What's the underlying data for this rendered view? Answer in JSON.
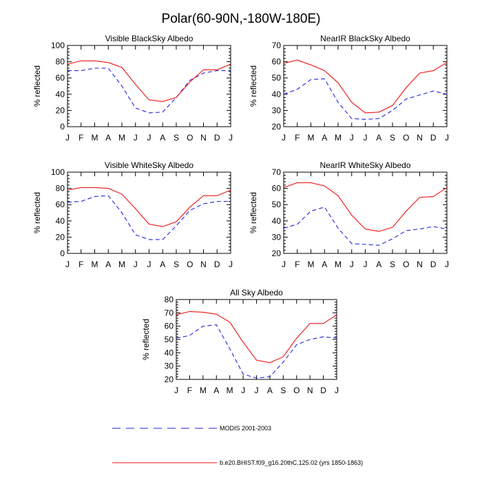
{
  "title": "Polar(60-90N,-180W-180E)",
  "ylabel": "% reflected",
  "months": [
    "J",
    "F",
    "M",
    "A",
    "M",
    "J",
    "J",
    "A",
    "S",
    "O",
    "N",
    "D",
    "J"
  ],
  "legend": [
    {
      "label": "MODIS 2001-2003",
      "color": "#2222dd",
      "style": "dashed"
    },
    {
      "label": "b.e20.BHIST.f09_g16.20thC.125.02 (yrs 1850-1863)",
      "color": "#ee1111",
      "style": "solid"
    }
  ],
  "chart_data": [
    {
      "type": "line",
      "title": "Visible BlackSky Albedo",
      "ylabel": "% reflected",
      "ylim": [
        0,
        100
      ],
      "yticks": [
        0,
        20,
        40,
        60,
        80,
        100
      ],
      "categories": [
        "J",
        "F",
        "M",
        "A",
        "M",
        "J",
        "J",
        "A",
        "S",
        "O",
        "N",
        "D",
        "J"
      ],
      "series": [
        {
          "name": "MODIS 2001-2003",
          "values": [
            69,
            69,
            72,
            72,
            50,
            23,
            17,
            18,
            36,
            57,
            66,
            69,
            69
          ]
        },
        {
          "name": "b.e20.BHIST.f09_g16.20thC.125.02 (yrs 1850-1863)",
          "values": [
            77,
            81,
            81,
            79,
            73,
            52,
            33,
            31,
            36,
            55,
            70,
            70,
            77
          ]
        }
      ]
    },
    {
      "type": "line",
      "title": "NearIR BlackSky Albedo",
      "ylabel": "% reflected",
      "ylim": [
        20,
        70
      ],
      "yticks": [
        20,
        30,
        40,
        50,
        60,
        70
      ],
      "categories": [
        "J",
        "F",
        "M",
        "A",
        "M",
        "J",
        "J",
        "A",
        "S",
        "O",
        "N",
        "D",
        "J"
      ],
      "series": [
        {
          "name": "MODIS 2001-2003",
          "values": [
            40,
            43,
            49,
            49.5,
            35,
            25,
            24.5,
            25,
            30,
            37,
            39.5,
            42,
            40
          ]
        },
        {
          "name": "b.e20.BHIST.f09_g16.20thC.125.02 (yrs 1850-1863)",
          "values": [
            59,
            61,
            58,
            54.5,
            47,
            35,
            28.5,
            29,
            33,
            44,
            53,
            54.5,
            59.5
          ]
        }
      ]
    },
    {
      "type": "line",
      "title": "Visible WhiteSky Albedo",
      "ylabel": "% reflected",
      "ylim": [
        0,
        100
      ],
      "yticks": [
        0,
        20,
        40,
        60,
        80,
        100
      ],
      "categories": [
        "J",
        "F",
        "M",
        "A",
        "M",
        "J",
        "J",
        "A",
        "S",
        "O",
        "N",
        "D",
        "J"
      ],
      "series": [
        {
          "name": "MODIS 2001-2003",
          "values": [
            63,
            64,
            70,
            71,
            50,
            23,
            17,
            17,
            34,
            53,
            61,
            64,
            64
          ]
        },
        {
          "name": "b.e20.BHIST.f09_g16.20thC.125.02 (yrs 1850-1863)",
          "values": [
            78,
            81,
            81,
            80,
            73,
            55,
            36,
            33,
            39,
            57,
            71,
            71,
            78
          ]
        }
      ]
    },
    {
      "type": "line",
      "title": "NearIR WhiteSky Albedo",
      "ylabel": "% reflected",
      "ylim": [
        20,
        70
      ],
      "yticks": [
        20,
        30,
        40,
        50,
        60,
        70
      ],
      "categories": [
        "J",
        "F",
        "M",
        "A",
        "M",
        "J",
        "J",
        "A",
        "S",
        "O",
        "N",
        "D",
        "J"
      ],
      "series": [
        {
          "name": "MODIS 2001-2003",
          "values": [
            35.5,
            38,
            46,
            48.5,
            35.5,
            26,
            25.5,
            25,
            29,
            34,
            35,
            36.5,
            35
          ]
        },
        {
          "name": "b.e20.BHIST.f09_g16.20thC.125.02 (yrs 1850-1863)",
          "values": [
            60.5,
            63.5,
            63.5,
            61.5,
            55.5,
            43.5,
            35,
            33.5,
            36,
            46,
            54.5,
            55,
            60.5
          ]
        }
      ]
    },
    {
      "type": "line",
      "title": "All Sky Albedo",
      "ylabel": "% reflected",
      "ylim": [
        20,
        80
      ],
      "yticks": [
        20,
        30,
        40,
        50,
        60,
        70,
        80
      ],
      "categories": [
        "J",
        "F",
        "M",
        "A",
        "M",
        "J",
        "J",
        "A",
        "S",
        "O",
        "N",
        "D",
        "J"
      ],
      "series": [
        {
          "name": "MODIS 2001-2003",
          "values": [
            51,
            53,
            60,
            61,
            43,
            24,
            21,
            22,
            33,
            46,
            50,
            52,
            51
          ]
        },
        {
          "name": "b.e20.BHIST.f09_g16.20thC.125.02 (yrs 1850-1863)",
          "values": [
            68.5,
            71,
            70.5,
            69,
            63,
            48,
            34.5,
            32.5,
            37,
            51,
            62,
            62,
            68.5
          ]
        }
      ]
    }
  ]
}
